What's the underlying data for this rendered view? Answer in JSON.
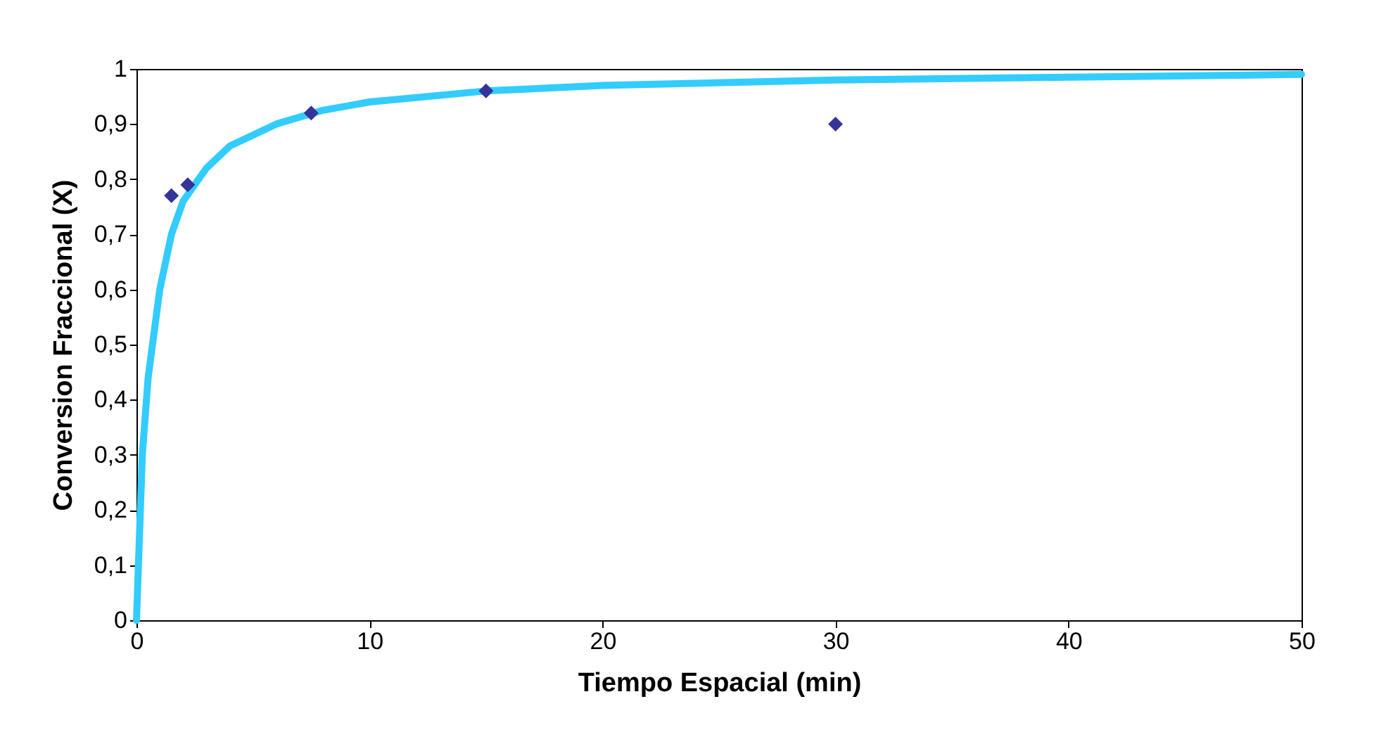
{
  "chart_data": {
    "type": "scatter",
    "xlabel": "Tiempo Espacial (min)",
    "ylabel": "Conversion Fraccional (X)",
    "xlim": [
      0,
      50
    ],
    "ylim": [
      0,
      1
    ],
    "xticks": [
      0,
      10,
      20,
      30,
      40,
      50
    ],
    "yticks": [
      0,
      {
        "value": 0.1,
        "label": "0,1"
      },
      {
        "value": 0.2,
        "label": "0,2"
      },
      {
        "value": 0.3,
        "label": "0,3"
      },
      {
        "value": 0.4,
        "label": "0,4"
      },
      {
        "value": 0.5,
        "label": "0,5"
      },
      {
        "value": 0.6,
        "label": "0,6"
      },
      {
        "value": 0.7,
        "label": "0,7"
      },
      {
        "value": 0.8,
        "label": "0,8"
      },
      {
        "value": 0.9,
        "label": "0,9"
      },
      1
    ],
    "grid": false,
    "legend": false,
    "series": [
      {
        "type": "line",
        "color": "#33ccff",
        "marker": "none",
        "line_style": "solid",
        "x": [
          0,
          0.25,
          0.5,
          1,
          1.5,
          2,
          3,
          4,
          6,
          8,
          10,
          15,
          20,
          30,
          40,
          50
        ],
        "values": [
          0,
          0.3,
          0.44,
          0.6,
          0.7,
          0.76,
          0.82,
          0.86,
          0.9,
          0.925,
          0.94,
          0.96,
          0.97,
          0.98,
          0.985,
          0.99
        ]
      },
      {
        "type": "scatter",
        "color": "#333399",
        "marker": "diamond",
        "x": [
          1.5,
          2.2,
          7.5,
          15,
          30
        ],
        "values": [
          0.77,
          0.79,
          0.92,
          0.96,
          0.9
        ]
      }
    ]
  }
}
